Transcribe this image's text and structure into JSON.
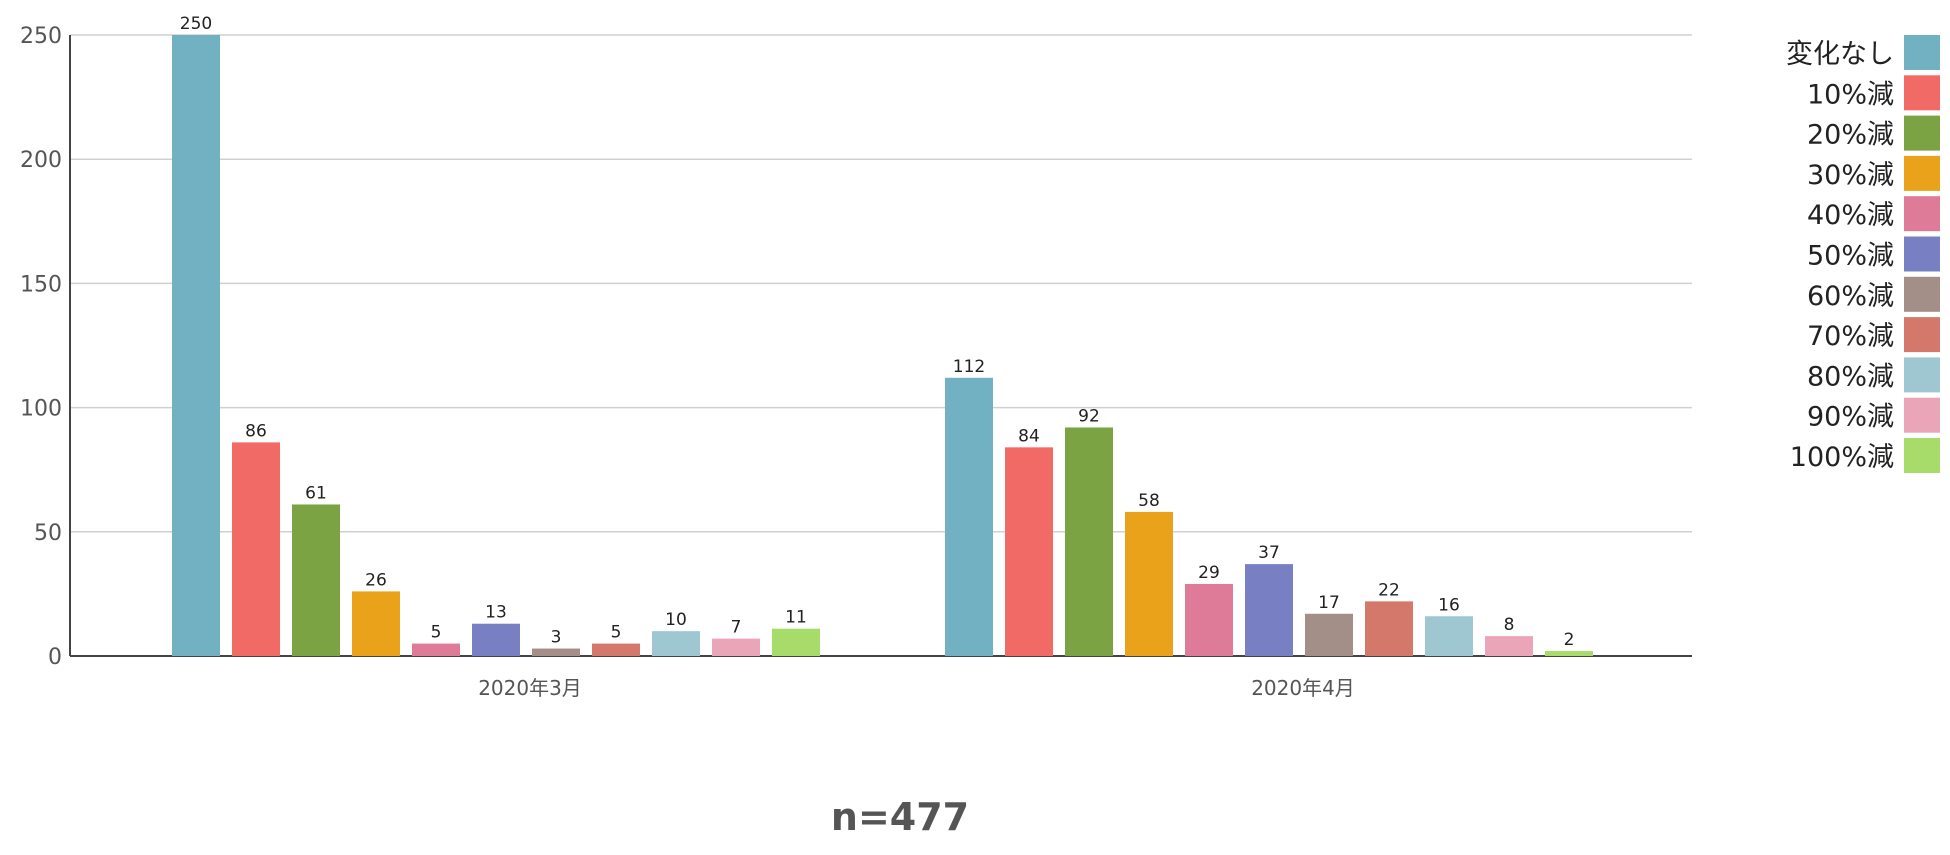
{
  "chart_data": {
    "type": "bar",
    "categories": [
      "2020年3月",
      "2020年4月"
    ],
    "series": [
      {
        "name": "変化なし",
        "color": "#72b1c1",
        "values": [
          250,
          112
        ]
      },
      {
        "name": "10%減",
        "color": "#f26a66",
        "values": [
          86,
          84
        ]
      },
      {
        "name": "20%減",
        "color": "#7ba343",
        "values": [
          61,
          92
        ]
      },
      {
        "name": "30%減",
        "color": "#eba21b",
        "values": [
          26,
          58
        ]
      },
      {
        "name": "40%減",
        "color": "#de7b98",
        "values": [
          5,
          29
        ]
      },
      {
        "name": "50%減",
        "color": "#7880c3",
        "values": [
          13,
          37
        ]
      },
      {
        "name": "60%減",
        "color": "#a38f88",
        "values": [
          3,
          17
        ]
      },
      {
        "name": "70%減",
        "color": "#d4786b",
        "values": [
          5,
          22
        ]
      },
      {
        "name": "80%減",
        "color": "#9fc7d1",
        "values": [
          10,
          16
        ]
      },
      {
        "name": "90%減",
        "color": "#eba5b9",
        "values": [
          7,
          8
        ]
      },
      {
        "name": "100%減",
        "color": "#a8dc6a",
        "values": [
          11,
          2
        ]
      }
    ],
    "ylim": [
      0,
      250
    ],
    "yticks": [
      0,
      50,
      100,
      150,
      200,
      250
    ],
    "grid": true,
    "legend": "right",
    "data_labels": true,
    "title": "",
    "xlabel": "",
    "ylabel": ""
  },
  "footnote": "n=477"
}
